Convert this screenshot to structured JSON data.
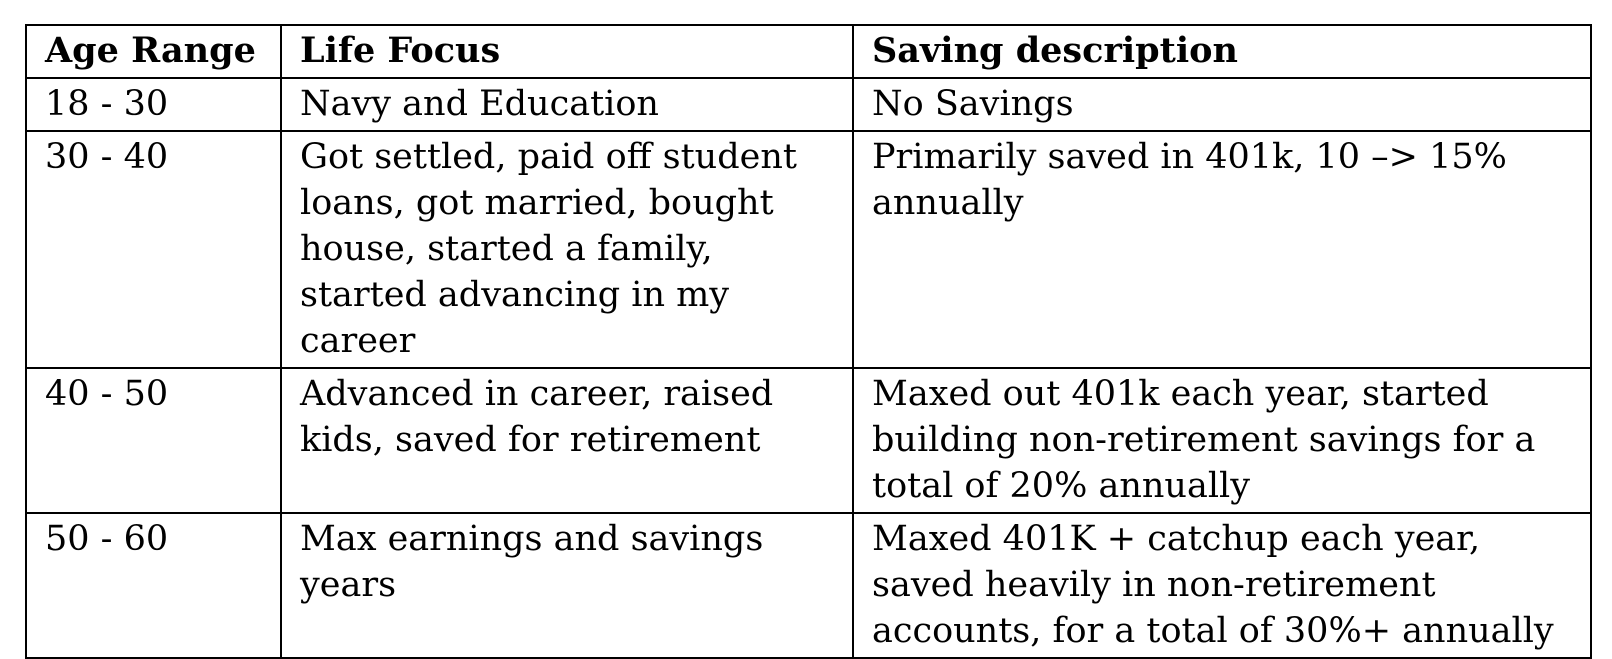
{
  "table": {
    "headers": [
      "Age Range",
      "Life Focus",
      "Saving description"
    ],
    "rows": [
      {
        "age_range": "18 - 30",
        "life_focus": "Navy and Education",
        "saving_description": "No Savings"
      },
      {
        "age_range": "30 - 40",
        "life_focus": "Got settled, paid off student loans, got married, bought house, started a family, started advancing in my career",
        "saving_description": "Primarily saved in 401k, 10 –> 15% annually"
      },
      {
        "age_range": "40 - 50",
        "life_focus": "Advanced in career, raised kids, saved for retirement",
        "saving_description": "Maxed out 401k each year, started building non-retirement savings for a total of 20% annually"
      },
      {
        "age_range": "50 - 60",
        "life_focus": "Max earnings and savings years",
        "saving_description": "Maxed 401K + catchup each year, saved heavily in non-retirement accounts, for a total of 30%+ annually"
      }
    ]
  }
}
